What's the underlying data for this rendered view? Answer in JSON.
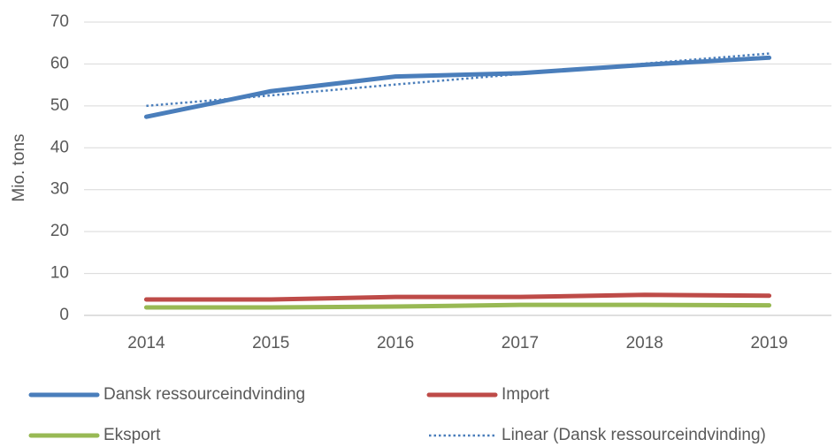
{
  "chart_data": {
    "type": "line",
    "y_label": "Mio. tons",
    "categories": [
      "2014",
      "2015",
      "2016",
      "2017",
      "2018",
      "2019"
    ],
    "series": [
      {
        "name": "Dansk ressourceindvinding",
        "color": "#4a7ebb",
        "style": "solid",
        "values": [
          47.4,
          53.5,
          57.0,
          57.8,
          59.8,
          61.5
        ]
      },
      {
        "name": "Import",
        "color": "#be4b48",
        "style": "solid",
        "values": [
          3.8,
          3.8,
          4.4,
          4.4,
          4.9,
          4.7
        ]
      },
      {
        "name": "Eksport",
        "color": "#98b954",
        "style": "solid",
        "values": [
          1.9,
          1.9,
          2.1,
          2.5,
          2.5,
          2.4
        ]
      },
      {
        "name": "Linear (Dansk ressourceindvinding)",
        "color": "#4a7ebb",
        "style": "dotted",
        "values": [
          50.0,
          52.5,
          55.1,
          57.6,
          60.1,
          62.5
        ]
      }
    ],
    "ylim": [
      0,
      70
    ],
    "yticks": [
      0,
      10,
      20,
      30,
      40,
      50,
      60,
      70
    ],
    "grid": true,
    "legend": "bottom"
  }
}
